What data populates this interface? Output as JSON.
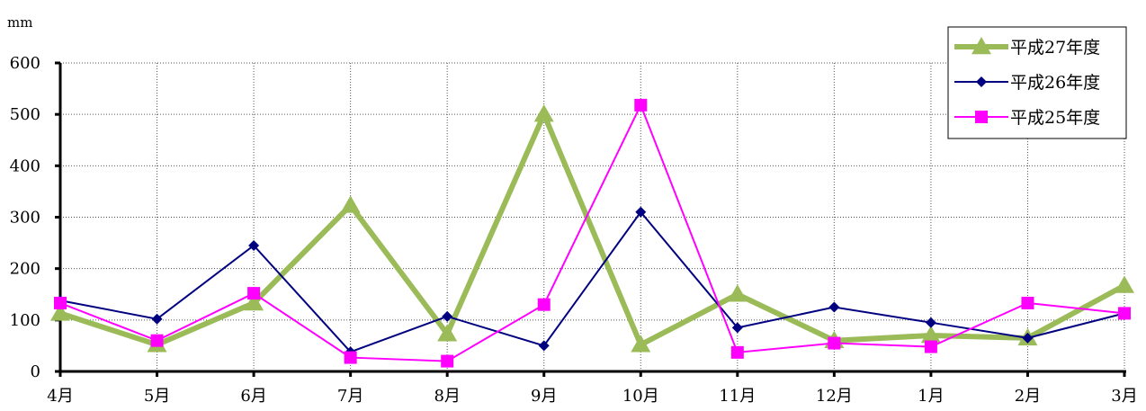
{
  "chart_data": {
    "type": "line",
    "ylabel": "mm",
    "ylim": [
      0,
      600
    ],
    "yticks": [
      0,
      100,
      200,
      300,
      400,
      500,
      600
    ],
    "categories": [
      "4月",
      "5月",
      "6月",
      "7月",
      "8月",
      "9月",
      "10月",
      "11月",
      "12月",
      "1月",
      "2月",
      "3月"
    ],
    "grid": true,
    "legend_position": "top-right",
    "series": [
      {
        "name": "平成27年度",
        "color": "#9bbb59",
        "marker": "triangle",
        "values": [
          113,
          52,
          133,
          323,
          73,
          500,
          52,
          150,
          60,
          70,
          65,
          167
        ]
      },
      {
        "name": "平成26年度",
        "color": "#000080",
        "marker": "diamond",
        "values": [
          138,
          102,
          245,
          38,
          107,
          50,
          310,
          85,
          125,
          95,
          65,
          113
        ]
      },
      {
        "name": "平成25年度",
        "color": "#ff00ff",
        "marker": "square",
        "values": [
          133,
          60,
          152,
          27,
          20,
          130,
          518,
          37,
          55,
          48,
          133,
          113
        ]
      }
    ]
  }
}
